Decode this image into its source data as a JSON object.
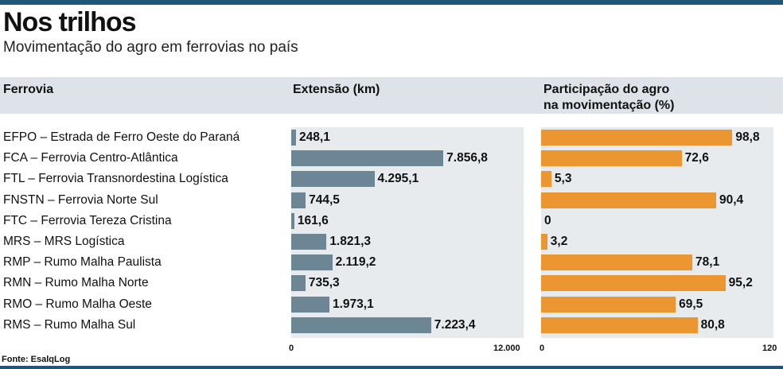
{
  "title": "Nos trilhos",
  "subtitle": "Movimentação do agro em ferrovias no país",
  "headers": {
    "ferrovia": "Ferrovia",
    "extensao": "Extensão (km)",
    "participacao_line1": "Participação do agro",
    "participacao_line2": "na movimentação (%)"
  },
  "source": "Fonte: EsalqLog",
  "colors": {
    "rule": "#1f5578",
    "extension_bar": "#6c8696",
    "share_bar": "#ec9632",
    "panel": "#e8ebee",
    "header_band": "#dde3e8"
  },
  "chart_data": [
    {
      "type": "bar",
      "orientation": "horizontal",
      "title": "Extensão (km)",
      "xlim": [
        0,
        12000
      ],
      "ticks": [
        "0",
        "12.000"
      ],
      "categories": [
        "EFPO – Estrada de Ferro Oeste do Paraná",
        "FCA – Ferrovia Centro-Atlântica",
        "FTL – Ferrovia Transnordestina Logística",
        "FNSTN – Ferrovia Norte Sul",
        "FTC – Ferrovia Tereza Cristina",
        "MRS – MRS Logística",
        "RMP – Rumo Malha Paulista",
        "RMN – Rumo Malha Norte",
        "RMO – Rumo Malha Oeste",
        "RMS – Rumo Malha Sul"
      ],
      "values": [
        248.1,
        7856.8,
        4295.1,
        744.5,
        161.6,
        1821.3,
        2119.2,
        735.3,
        1973.1,
        7223.4
      ],
      "labels": [
        "248,1",
        "7.856,8",
        "4.295,1",
        "744,5",
        "161,6",
        "1.821,3",
        "2.119,2",
        "735,3",
        "1.973,1",
        "7.223,4"
      ]
    },
    {
      "type": "bar",
      "orientation": "horizontal",
      "title": "Participação do agro na movimentação (%)",
      "xlim": [
        0,
        120
      ],
      "ticks": [
        "0",
        "120"
      ],
      "values": [
        98.8,
        72.6,
        5.3,
        90.4,
        0,
        3.2,
        78.1,
        95.2,
        69.5,
        80.8
      ],
      "labels": [
        "98,8",
        "72,6",
        "5,3",
        "90,4",
        "0",
        "3,2",
        "78,1",
        "95,2",
        "69,5",
        "80,8"
      ]
    }
  ]
}
